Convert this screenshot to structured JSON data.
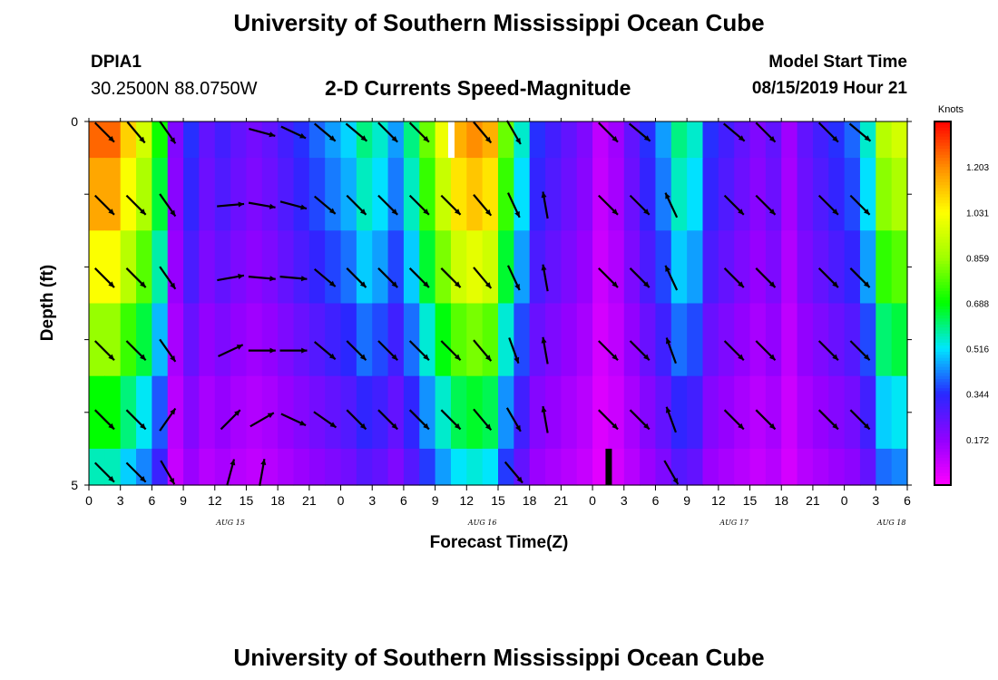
{
  "header": {
    "title": "University of Southern Mississippi Ocean Cube",
    "station_id": "DPIA1",
    "station_coords": "30.2500N 88.0750W",
    "subtitle": "2-D Currents Speed-Magnitude",
    "model_start_label": "Model Start Time",
    "model_start_value": "08/15/2019 Hour 21"
  },
  "footer": {
    "title": "University of Southern Mississippi Ocean Cube"
  },
  "chart_data": {
    "type": "heatmap",
    "xlabel": "Forecast Time(Z)",
    "ylabel": "Depth (ft)",
    "ylim": [
      0,
      5
    ],
    "y_ticks": [
      "0",
      "5"
    ],
    "x_tick_labels": [
      "0",
      "3",
      "6",
      "9",
      "12",
      "15",
      "18",
      "21",
      "0",
      "3",
      "6",
      "9",
      "12",
      "15",
      "18",
      "21",
      "0",
      "3",
      "6",
      "9",
      "12",
      "15",
      "18",
      "21",
      "0",
      "3",
      "6"
    ],
    "date_labels": [
      {
        "text": "AUG 15",
        "tick_index": 4.5
      },
      {
        "text": "AUG 16",
        "tick_index": 12.5
      },
      {
        "text": "AUG 17",
        "tick_index": 20.5
      },
      {
        "text": "AUG 18",
        "tick_index": 25.5
      }
    ],
    "colorbar": {
      "unit": "Knots",
      "min": 0.0,
      "max": 1.375,
      "tick_labels": [
        "1.203",
        "1.031",
        "0.859",
        "0.688",
        "0.516",
        "0.344",
        "0.172"
      ],
      "tick_values": [
        1.203,
        1.031,
        0.859,
        0.688,
        0.516,
        0.344,
        0.172
      ]
    },
    "time_hours": [
      0,
      1.5,
      3,
      4.5,
      6,
      7.5,
      9,
      10.5,
      12,
      13.5,
      15,
      16.5,
      18,
      19.5,
      21,
      22.5,
      24,
      25.5,
      27,
      28.5,
      30,
      31.5,
      33,
      34.5,
      36,
      37.5,
      39,
      40.5,
      42,
      43.5,
      45,
      46.5,
      48,
      49.5,
      51,
      52.5,
      54,
      55.5,
      57,
      58.5,
      60,
      61.5,
      63,
      64.5,
      66,
      67.5,
      69,
      70.5,
      72,
      73.5,
      75,
      76.5,
      78
    ],
    "depth_rows": [
      0.25,
      1.0,
      2.0,
      3.0,
      4.0,
      4.75
    ],
    "speed_profile": [
      1.25,
      1.25,
      1.1,
      0.95,
      0.7,
      0.2,
      0.35,
      0.25,
      0.3,
      0.25,
      0.22,
      0.25,
      0.3,
      0.35,
      0.4,
      0.45,
      0.5,
      0.6,
      0.55,
      0.45,
      0.6,
      0.8,
      1.0,
      1.15,
      1.2,
      1.15,
      0.8,
      0.55,
      0.35,
      0.3,
      0.25,
      0.2,
      0.1,
      0.15,
      0.25,
      0.35,
      0.45,
      0.6,
      0.55,
      0.35,
      0.3,
      0.25,
      0.2,
      0.25,
      0.15,
      0.25,
      0.3,
      0.35,
      0.4,
      0.55,
      0.9,
      0.95,
      0.8
    ],
    "depth_factor": [
      1.0,
      0.93,
      0.82,
      0.68,
      0.55,
      0.45
    ],
    "missing_cells": [
      {
        "time": 49.5,
        "depth_row": 5,
        "kind": "black"
      },
      {
        "time": 34.5,
        "depth_row": 0,
        "kind": "white"
      }
    ],
    "vector_columns": [
      {
        "time": 1.5,
        "angles": [
          -45,
          -45,
          -45,
          -45,
          -45,
          -45
        ]
      },
      {
        "time": 4.5,
        "angles": [
          -50,
          -45,
          -45,
          -45,
          -45,
          -45
        ]
      },
      {
        "time": 7.5,
        "angles": [
          -55,
          -55,
          -55,
          -55,
          55,
          -60
        ]
      },
      {
        "time": 13.5,
        "angles": [
          0,
          5,
          10,
          25,
          45,
          75
        ]
      },
      {
        "time": 16.5,
        "angles": [
          -15,
          -10,
          -5,
          0,
          30,
          80
        ]
      },
      {
        "time": 19.5,
        "angles": [
          -25,
          -15,
          -5,
          0,
          -25,
          0
        ]
      },
      {
        "time": 22.5,
        "angles": [
          -40,
          -40,
          -40,
          -40,
          -35,
          0
        ]
      },
      {
        "time": 25.5,
        "angles": [
          -40,
          -45,
          -45,
          -45,
          -45,
          0
        ]
      },
      {
        "time": 28.5,
        "angles": [
          -45,
          -45,
          -45,
          -45,
          -45,
          0
        ]
      },
      {
        "time": 31.5,
        "angles": [
          -45,
          -45,
          -45,
          -45,
          -45,
          0
        ]
      },
      {
        "time": 34.5,
        "angles": [
          0,
          -45,
          -45,
          -45,
          -45,
          0
        ]
      },
      {
        "time": 37.5,
        "angles": [
          -50,
          -50,
          -50,
          -50,
          -50,
          0
        ]
      },
      {
        "time": 40.5,
        "angles": [
          -60,
          -65,
          -65,
          -70,
          -60,
          -50
        ]
      },
      {
        "time": 43.5,
        "angles": [
          0,
          100,
          100,
          100,
          100,
          0
        ]
      },
      {
        "time": 49.5,
        "angles": [
          -45,
          -45,
          -45,
          -45,
          -45,
          0
        ]
      },
      {
        "time": 52.5,
        "angles": [
          -40,
          -45,
          -45,
          -45,
          -45,
          0
        ]
      },
      {
        "time": 55.5,
        "angles": [
          0,
          115,
          115,
          110,
          110,
          -60
        ]
      },
      {
        "time": 61.5,
        "angles": [
          -40,
          -45,
          -45,
          -45,
          -45,
          0
        ]
      },
      {
        "time": 64.5,
        "angles": [
          -45,
          -45,
          -45,
          -45,
          -45,
          0
        ]
      },
      {
        "time": 70.5,
        "angles": [
          -45,
          -45,
          -45,
          -45,
          -45,
          0
        ]
      },
      {
        "time": 73.5,
        "angles": [
          -40,
          -45,
          -45,
          -45,
          -45,
          0
        ]
      }
    ]
  }
}
